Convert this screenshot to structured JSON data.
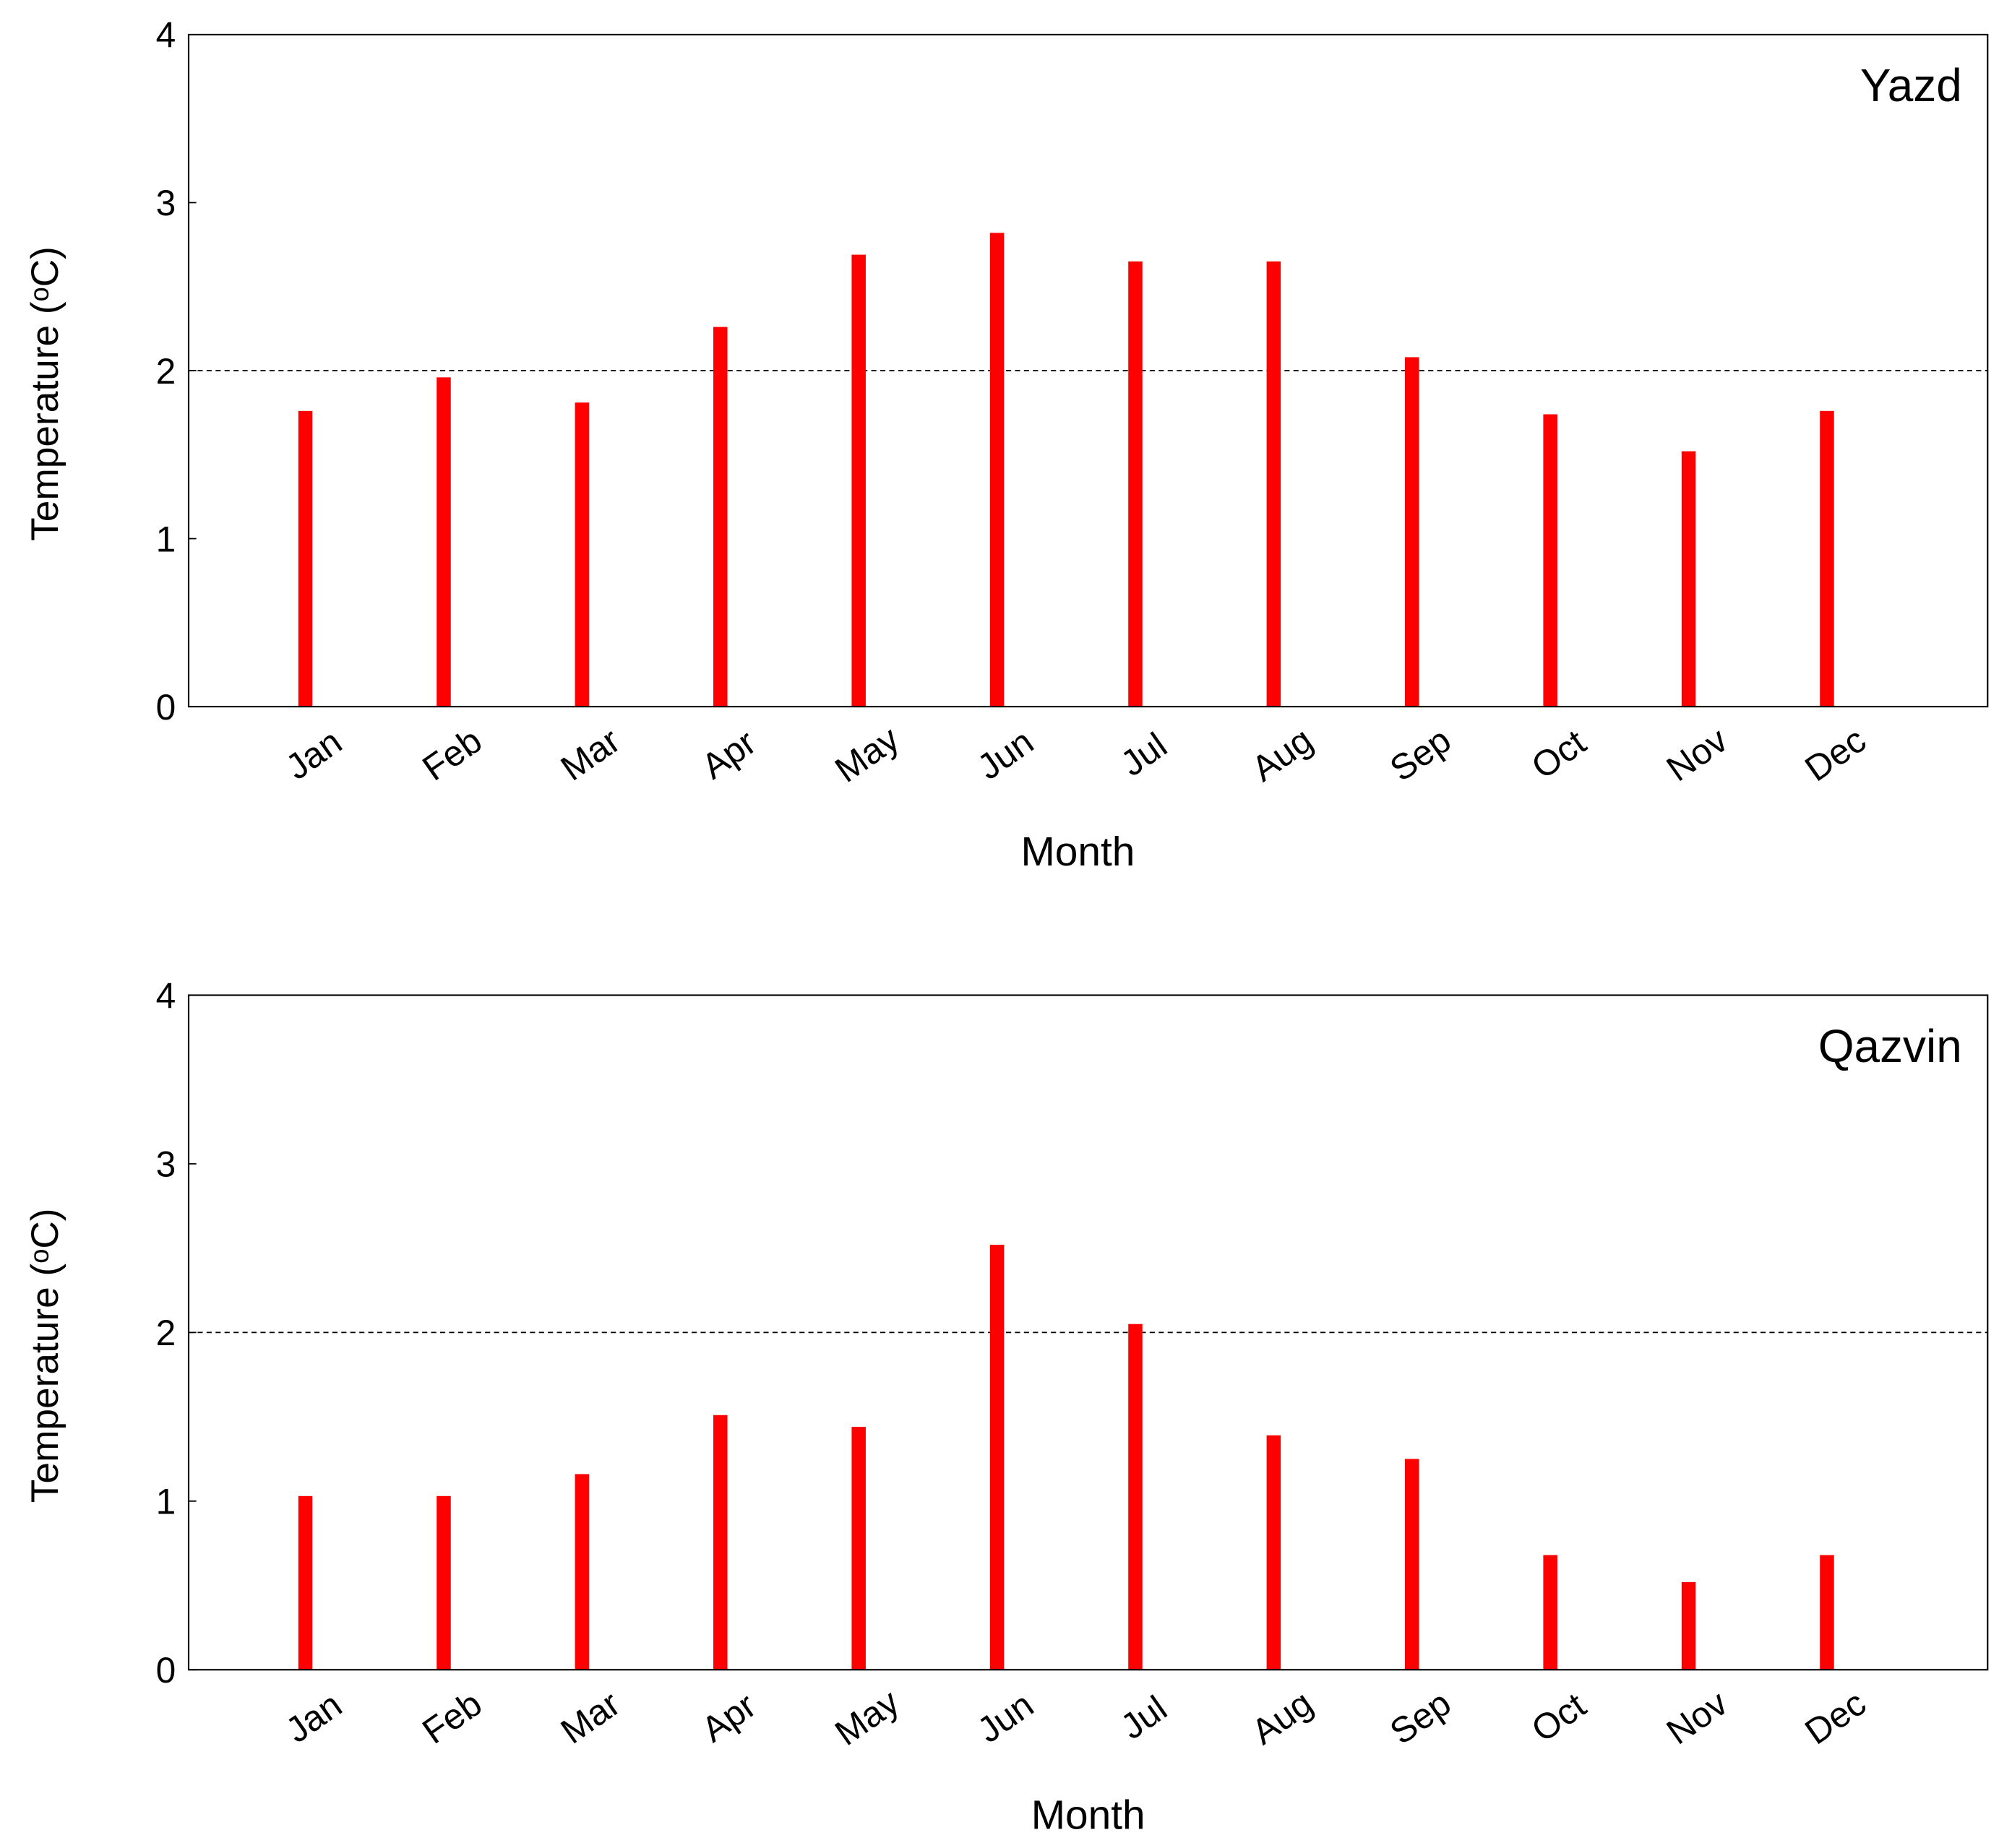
{
  "chart_data": [
    {
      "type": "bar",
      "annotation": "Yazd",
      "xlabel": "Month",
      "ylabel": "Temperature (ᵒC)",
      "categories": [
        "Jan",
        "Feb",
        "Mar",
        "Apr",
        "May",
        "Jun",
        "Jul",
        "Aug",
        "Sep",
        "Oct",
        "Nov",
        "Dec"
      ],
      "values": [
        1.76,
        1.96,
        1.81,
        2.26,
        2.69,
        2.82,
        2.65,
        2.65,
        2.08,
        1.74,
        1.52,
        1.76
      ],
      "color": "#ff0000",
      "ylim": [
        0,
        4
      ],
      "yticks": [
        0,
        1,
        2,
        3,
        4
      ],
      "reference_line": 2
    },
    {
      "type": "bar",
      "annotation": "Qazvin",
      "xlabel": "Month",
      "ylabel": "Temperature (ᵒC)",
      "categories": [
        "Jan",
        "Feb",
        "Mar",
        "Apr",
        "May",
        "Jun",
        "Jul",
        "Aug",
        "Sep",
        "Oct",
        "Nov",
        "Dec"
      ],
      "values": [
        1.03,
        1.03,
        1.16,
        1.51,
        1.44,
        2.52,
        2.05,
        1.39,
        1.25,
        0.68,
        0.52,
        0.68
      ],
      "color": "#ff0000",
      "ylim": [
        0,
        4
      ],
      "yticks": [
        0,
        1,
        2,
        3,
        4
      ],
      "reference_line": 2
    }
  ]
}
